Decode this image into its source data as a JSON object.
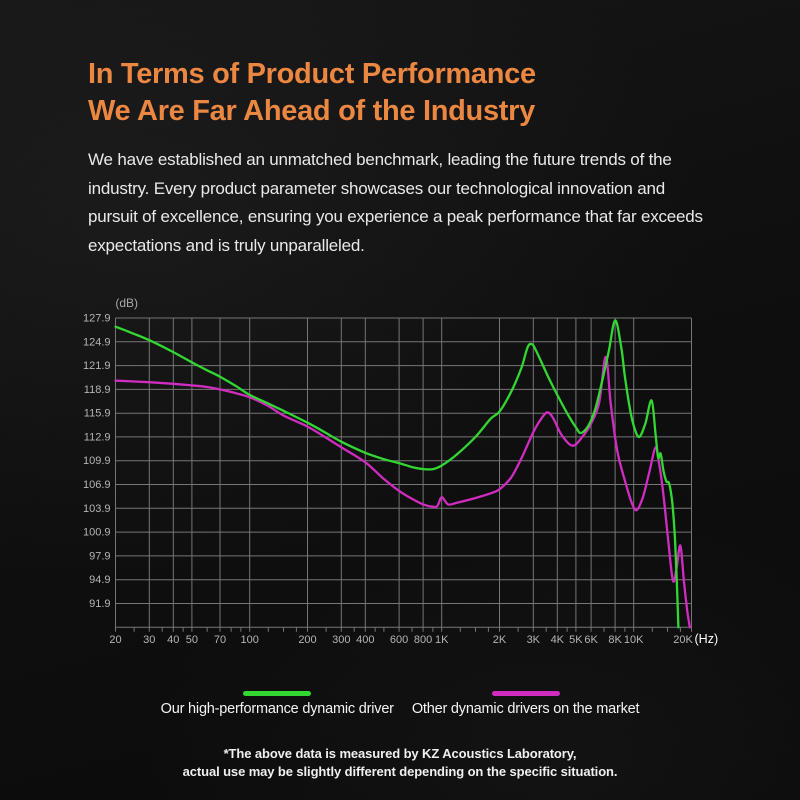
{
  "header": {
    "title_line1": "In Terms of Product Performance",
    "title_line2": "We Are Far Ahead of the Industry",
    "title_color": "#EC8742"
  },
  "body": {
    "lines": [
      "We have established an unmatched benchmark, leading the future trends of the",
      "industry. Every product parameter showcases our technological innovation and",
      "pursuit of excellence, ensuring you experience a peak performance that far exceeds",
      "expectations and is truly unparalleled."
    ]
  },
  "chart_data": {
    "type": "line",
    "title": "",
    "xlabel": "(Hz)",
    "ylabel": "(dB)",
    "x_scale": "log",
    "x_range": [
      20,
      20000
    ],
    "y_range": [
      88.9,
      127.9
    ],
    "y_gridline_step": 3,
    "grid": true,
    "legend_position": "bottom",
    "grid_color": "#767676",
    "label_color": "#B5B5B5",
    "unit_label_color": "#FFFFFF",
    "y_tick_labels": [
      "127.9",
      "124.9",
      "121.9",
      "118.9",
      "115.9",
      "112.9",
      "109.9",
      "106.9",
      "103.9",
      "100.9",
      "97.9",
      "94.9",
      "91.9"
    ],
    "x_gridlines": [
      20,
      30,
      40,
      50,
      70,
      100,
      200,
      300,
      400,
      600,
      800,
      1000,
      2000,
      3000,
      4000,
      5000,
      6000,
      8000,
      10000,
      20000
    ],
    "x_minor_ticks": [
      25,
      35,
      45,
      60,
      80,
      90,
      125,
      150,
      175,
      250,
      350,
      450,
      500,
      700,
      900,
      1250,
      1500,
      1750,
      2500,
      3500,
      4500,
      7000,
      9000,
      12500,
      15000,
      17500
    ],
    "x_tick_labels": [
      {
        "f": 20,
        "label": "20"
      },
      {
        "f": 30,
        "label": "30"
      },
      {
        "f": 40,
        "label": "40"
      },
      {
        "f": 50,
        "label": "50"
      },
      {
        "f": 70,
        "label": "70"
      },
      {
        "f": 100,
        "label": "100"
      },
      {
        "f": 200,
        "label": "200"
      },
      {
        "f": 300,
        "label": "300"
      },
      {
        "f": 400,
        "label": "400"
      },
      {
        "f": 600,
        "label": "600"
      },
      {
        "f": 800,
        "label": "800"
      },
      {
        "f": 1000,
        "label": "1K"
      },
      {
        "f": 2000,
        "label": "2K"
      },
      {
        "f": 3000,
        "label": "3K"
      },
      {
        "f": 4000,
        "label": "4K"
      },
      {
        "f": 5000,
        "label": "5K"
      },
      {
        "f": 6000,
        "label": "6K"
      },
      {
        "f": 8000,
        "label": "8K"
      },
      {
        "f": 10000,
        "label": "10K"
      },
      {
        "f": 20000,
        "label": "20K"
      }
    ],
    "series": [
      {
        "name": "Other dynamic drivers on the market",
        "color": "#D02CC0",
        "points": [
          [
            20,
            120.0
          ],
          [
            30,
            119.8
          ],
          [
            40,
            119.6
          ],
          [
            50,
            119.4
          ],
          [
            60,
            119.2
          ],
          [
            70,
            118.9
          ],
          [
            85,
            118.4
          ],
          [
            100,
            117.9
          ],
          [
            125,
            116.8
          ],
          [
            150,
            115.6
          ],
          [
            200,
            114.2
          ],
          [
            250,
            112.8
          ],
          [
            300,
            111.6
          ],
          [
            400,
            109.7
          ],
          [
            500,
            107.6
          ],
          [
            600,
            106.1
          ],
          [
            700,
            105.1
          ],
          [
            800,
            104.4
          ],
          [
            900,
            104.1
          ],
          [
            950,
            104.2
          ],
          [
            1000,
            105.3
          ],
          [
            1080,
            104.4
          ],
          [
            1200,
            104.6
          ],
          [
            1500,
            105.2
          ],
          [
            1800,
            105.8
          ],
          [
            2000,
            106.3
          ],
          [
            2300,
            107.8
          ],
          [
            2600,
            110.2
          ],
          [
            3000,
            113.5
          ],
          [
            3300,
            115.2
          ],
          [
            3550,
            116.0
          ],
          [
            3800,
            115.3
          ],
          [
            4200,
            113.2
          ],
          [
            4800,
            111.8
          ],
          [
            5400,
            112.9
          ],
          [
            6000,
            114.6
          ],
          [
            6600,
            117.2
          ],
          [
            7150,
            123.0
          ],
          [
            7600,
            117.0
          ],
          [
            8200,
            111.2
          ],
          [
            9000,
            107.4
          ],
          [
            9800,
            104.5
          ],
          [
            10400,
            103.7
          ],
          [
            11200,
            105.4
          ],
          [
            12100,
            108.6
          ],
          [
            13000,
            111.6
          ],
          [
            13600,
            109.4
          ],
          [
            14300,
            105.5
          ],
          [
            15100,
            100.0
          ],
          [
            16000,
            94.8
          ],
          [
            16700,
            96.3
          ],
          [
            17500,
            99.2
          ],
          [
            18300,
            94.5
          ],
          [
            19000,
            91.0
          ],
          [
            19600,
            88.9
          ]
        ]
      },
      {
        "name": "Our high-performance dynamic driver",
        "color": "#32D732",
        "points": [
          [
            20,
            126.8
          ],
          [
            25,
            125.9
          ],
          [
            30,
            125.1
          ],
          [
            40,
            123.6
          ],
          [
            50,
            122.3
          ],
          [
            60,
            121.3
          ],
          [
            70,
            120.5
          ],
          [
            85,
            119.3
          ],
          [
            100,
            118.2
          ],
          [
            125,
            117.1
          ],
          [
            150,
            116.2
          ],
          [
            200,
            114.7
          ],
          [
            250,
            113.4
          ],
          [
            300,
            112.3
          ],
          [
            400,
            110.9
          ],
          [
            500,
            110.1
          ],
          [
            600,
            109.6
          ],
          [
            700,
            109.1
          ],
          [
            800,
            108.85
          ],
          [
            900,
            108.85
          ],
          [
            1000,
            109.3
          ],
          [
            1200,
            110.7
          ],
          [
            1500,
            112.9
          ],
          [
            1800,
            115.2
          ],
          [
            2000,
            116.1
          ],
          [
            2300,
            118.6
          ],
          [
            2600,
            121.6
          ],
          [
            2800,
            124.2
          ],
          [
            2950,
            124.6
          ],
          [
            3100,
            123.8
          ],
          [
            3600,
            120.4
          ],
          [
            4000,
            118.2
          ],
          [
            4500,
            115.9
          ],
          [
            5000,
            114.1
          ],
          [
            5300,
            113.4
          ],
          [
            5800,
            114.3
          ],
          [
            6300,
            116.4
          ],
          [
            6800,
            119.6
          ],
          [
            7400,
            123.6
          ],
          [
            8000,
            127.6
          ],
          [
            8600,
            124.3
          ],
          [
            9000,
            120.5
          ],
          [
            9600,
            116.2
          ],
          [
            10100,
            114.0
          ],
          [
            10700,
            112.9
          ],
          [
            11500,
            114.6
          ],
          [
            12400,
            117.5
          ],
          [
            13000,
            113.2
          ],
          [
            13400,
            110.3
          ],
          [
            13800,
            110.8
          ],
          [
            14300,
            108.6
          ],
          [
            14800,
            107.3
          ],
          [
            15300,
            107.0
          ],
          [
            15900,
            104.5
          ],
          [
            16400,
            100.0
          ],
          [
            16800,
            94.0
          ],
          [
            17100,
            88.9
          ]
        ]
      }
    ]
  },
  "legend": {
    "items": [
      {
        "label": "Our high-performance dynamic driver",
        "color": "#32D732"
      },
      {
        "label": "Other dynamic drivers on the market",
        "color": "#D02CC0"
      }
    ]
  },
  "footnote": {
    "lines": [
      "*The above data is measured by KZ Acoustics Laboratory,",
      "actual use may be slightly different depending on the specific situation."
    ]
  }
}
